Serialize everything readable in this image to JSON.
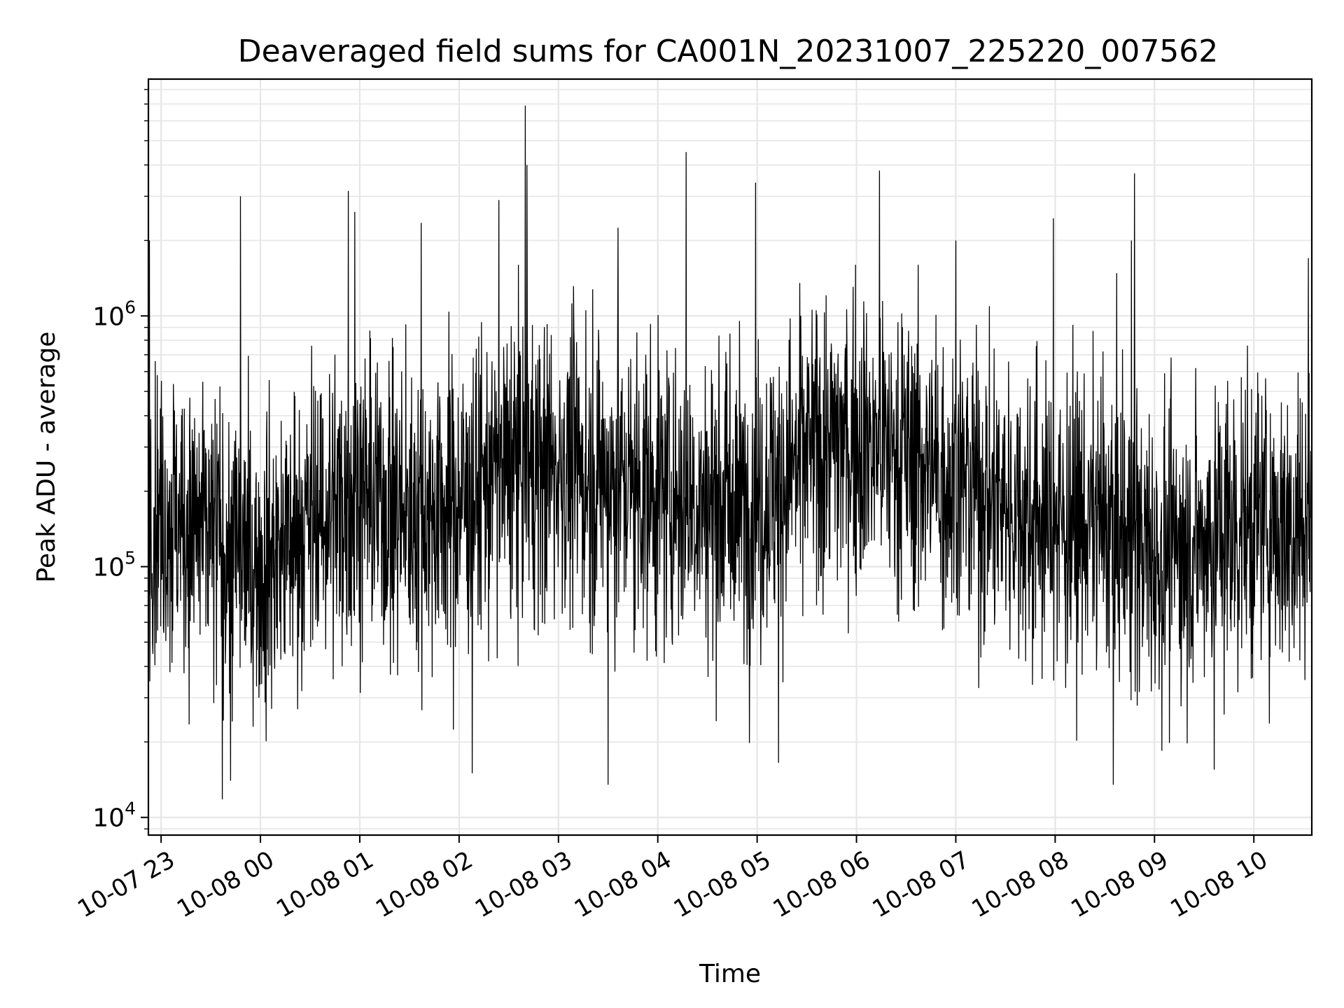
{
  "chart_data": {
    "type": "line",
    "title": "Deaveraged field sums for CA001N_20231007_225220_007562",
    "xlabel": "Time",
    "ylabel": "Peak ADU - average",
    "x_range": [
      "2023-10-07 22:52:20",
      "2023-10-08 10:35:00"
    ],
    "ylim": [
      8500,
      8800000
    ],
    "yscale": "log",
    "grid": true,
    "line_color": "#000000",
    "grid_color": "#e6e6e6",
    "x_ticks": [
      {
        "label": "10-07 23",
        "time": "2023-10-07 23:00"
      },
      {
        "label": "10-08 00",
        "time": "2023-10-08 00:00"
      },
      {
        "label": "10-08 01",
        "time": "2023-10-08 01:00"
      },
      {
        "label": "10-08 02",
        "time": "2023-10-08 02:00"
      },
      {
        "label": "10-08 03",
        "time": "2023-10-08 03:00"
      },
      {
        "label": "10-08 04",
        "time": "2023-10-08 04:00"
      },
      {
        "label": "10-08 05",
        "time": "2023-10-08 05:00"
      },
      {
        "label": "10-08 06",
        "time": "2023-10-08 06:00"
      },
      {
        "label": "10-08 07",
        "time": "2023-10-08 07:00"
      },
      {
        "label": "10-08 08",
        "time": "2023-10-08 08:00"
      },
      {
        "label": "10-08 09",
        "time": "2023-10-08 09:00"
      },
      {
        "label": "10-08 10",
        "time": "2023-10-08 10:00"
      }
    ],
    "y_ticks": [
      {
        "base": "10",
        "exp": "4",
        "value": 10000
      },
      {
        "base": "10",
        "exp": "5",
        "value": 100000
      },
      {
        "base": "10",
        "exp": "6",
        "value": 1000000
      }
    ],
    "envelope": [
      {
        "time": "2023-10-07 22:53",
        "median": 180000
      },
      {
        "time": "2023-10-07 23:30",
        "median": 130000
      },
      {
        "time": "2023-10-08 00:00",
        "median": 100000
      },
      {
        "time": "2023-10-08 00:30",
        "median": 150000
      },
      {
        "time": "2023-10-08 01:00",
        "median": 200000
      },
      {
        "time": "2023-10-08 01:30",
        "median": 160000
      },
      {
        "time": "2023-10-08 02:00",
        "median": 180000
      },
      {
        "time": "2023-10-08 02:30",
        "median": 250000
      },
      {
        "time": "2023-10-08 03:00",
        "median": 250000
      },
      {
        "time": "2023-10-08 03:30",
        "median": 220000
      },
      {
        "time": "2023-10-08 04:00",
        "median": 200000
      },
      {
        "time": "2023-10-08 04:30",
        "median": 180000
      },
      {
        "time": "2023-10-08 05:00",
        "median": 180000
      },
      {
        "time": "2023-10-08 05:30",
        "median": 280000
      },
      {
        "time": "2023-10-08 06:00",
        "median": 330000
      },
      {
        "time": "2023-10-08 06:30",
        "median": 280000
      },
      {
        "time": "2023-10-08 07:00",
        "median": 220000
      },
      {
        "time": "2023-10-08 07:30",
        "median": 180000
      },
      {
        "time": "2023-10-08 08:00",
        "median": 150000
      },
      {
        "time": "2023-10-08 08:30",
        "median": 150000
      },
      {
        "time": "2023-10-08 09:00",
        "median": 110000
      },
      {
        "time": "2023-10-08 09:30",
        "median": 130000
      },
      {
        "time": "2023-10-08 10:00",
        "median": 150000
      },
      {
        "time": "2023-10-08 10:35",
        "median": 150000
      }
    ],
    "spikes": [
      {
        "time": "2023-10-07 22:53",
        "value": 2000000
      },
      {
        "time": "2023-10-07 23:48",
        "value": 3000000
      },
      {
        "time": "2023-10-08 00:53",
        "value": 3150000
      },
      {
        "time": "2023-10-08 00:57",
        "value": 2600000
      },
      {
        "time": "2023-10-08 01:37",
        "value": 2350000
      },
      {
        "time": "2023-10-08 02:24",
        "value": 2900000
      },
      {
        "time": "2023-10-08 02:40",
        "value": 6900000
      },
      {
        "time": "2023-10-08 02:41",
        "value": 4000000
      },
      {
        "time": "2023-10-08 03:36",
        "value": 2250000
      },
      {
        "time": "2023-10-08 04:17",
        "value": 4500000
      },
      {
        "time": "2023-10-08 04:59",
        "value": 3400000
      },
      {
        "time": "2023-10-08 06:14",
        "value": 3800000
      },
      {
        "time": "2023-10-08 07:00",
        "value": 2000000
      },
      {
        "time": "2023-10-08 07:59",
        "value": 2450000
      },
      {
        "time": "2023-10-08 08:48",
        "value": 3700000
      },
      {
        "time": "2023-10-08 08:46",
        "value": 2000000
      },
      {
        "time": "2023-10-08 10:33",
        "value": 1700000
      }
    ],
    "dips": [
      {
        "time": "2023-10-07 23:37",
        "value": 11800
      },
      {
        "time": "2023-10-07 23:42",
        "value": 14000
      },
      {
        "time": "2023-10-08 02:08",
        "value": 15000
      },
      {
        "time": "2023-10-08 03:30",
        "value": 13500
      },
      {
        "time": "2023-10-08 05:13",
        "value": 16500
      },
      {
        "time": "2023-10-08 08:35",
        "value": 13500
      },
      {
        "time": "2023-10-08 09:36",
        "value": 15500
      }
    ]
  }
}
